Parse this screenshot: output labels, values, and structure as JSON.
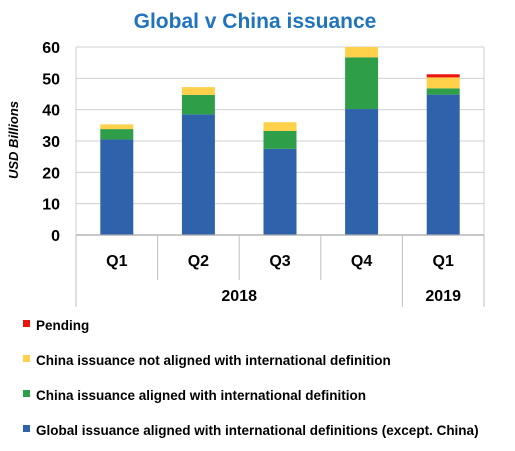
{
  "chart_data": {
    "type": "bar",
    "stacked": true,
    "title": "Global v China issuance",
    "ylabel": "USD Billions",
    "xlabel": "",
    "ylim": [
      0,
      60
    ],
    "yticks": [
      0,
      10,
      20,
      30,
      40,
      50,
      60
    ],
    "categories": [
      "Q1",
      "Q2",
      "Q3",
      "Q4",
      "Q1"
    ],
    "groups": [
      {
        "label": "2018",
        "categories": [
          "Q1",
          "Q2",
          "Q3",
          "Q4"
        ]
      },
      {
        "label": "2019",
        "categories": [
          "Q1"
        ]
      }
    ],
    "grid": true,
    "legend_position": "bottom",
    "series": [
      {
        "name": "Global issuance aligned with international definitions (except. China)",
        "color": "#2E63AC",
        "values": [
          30.5,
          38.5,
          27.5,
          40.2,
          44.8
        ]
      },
      {
        "name": "China issuance aligned with international definition",
        "color": "#2E9E48",
        "values": [
          3.3,
          6.2,
          5.7,
          16.5,
          2.0
        ]
      },
      {
        "name": "China issuance not aligned with international definition",
        "color": "#FFD04A",
        "values": [
          1.5,
          2.5,
          2.8,
          3.3,
          3.5
        ]
      },
      {
        "name": "Pending",
        "color": "#E8160C",
        "values": [
          0,
          0,
          0,
          0,
          1.0
        ]
      }
    ],
    "title_color": "#1F74BC"
  }
}
